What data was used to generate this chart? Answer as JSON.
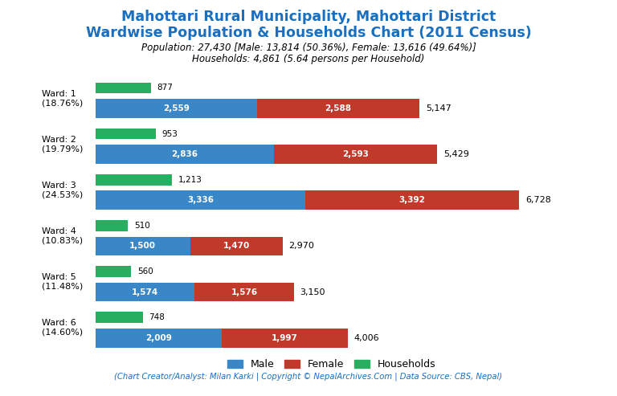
{
  "title_line1": "Mahottari Rural Municipality, Mahottari District",
  "title_line2": "Wardwise Population & Households Chart (2011 Census)",
  "subtitle_line1": "Population: 27,430 [Male: 13,814 (50.36%), Female: 13,616 (49.64%)]",
  "subtitle_line2": "Households: 4,861 (5.64 persons per Household)",
  "footer": "(Chart Creator/Analyst: Milan Karki | Copyright © NepalArchives.Com | Data Source: CBS, Nepal)",
  "wards": [
    {
      "label": "Ward: 1\n(18.76%)",
      "male": 2559,
      "female": 2588,
      "households": 877,
      "total": 5147
    },
    {
      "label": "Ward: 2\n(19.79%)",
      "male": 2836,
      "female": 2593,
      "households": 953,
      "total": 5429
    },
    {
      "label": "Ward: 3\n(24.53%)",
      "male": 3336,
      "female": 3392,
      "households": 1213,
      "total": 6728
    },
    {
      "label": "Ward: 4\n(10.83%)",
      "male": 1500,
      "female": 1470,
      "households": 510,
      "total": 2970
    },
    {
      "label": "Ward: 5\n(11.48%)",
      "male": 1574,
      "female": 1576,
      "households": 560,
      "total": 3150
    },
    {
      "label": "Ward: 6\n(14.60%)",
      "male": 2009,
      "female": 1997,
      "households": 748,
      "total": 4006
    }
  ],
  "colors": {
    "male": "#3a87c8",
    "female": "#c0392b",
    "households": "#27ae60",
    "title": "#1a6fbf",
    "subtitle": "#000000",
    "footer": "#1a6fbf",
    "background": "#ffffff",
    "bar_label": "#ffffff",
    "total_label": "#000000"
  },
  "pop_bar_height": 0.38,
  "hh_bar_height": 0.22,
  "xlim": [
    0,
    7500
  ]
}
